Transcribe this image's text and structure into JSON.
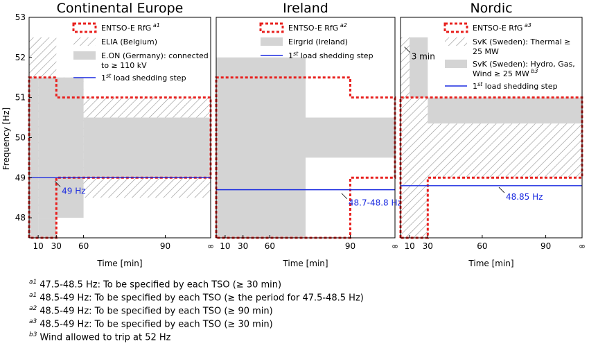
{
  "chart_data": [
    {
      "type": "area",
      "title": "Continental Europe",
      "xlabel": "Time [min]",
      "ylabel": "Frequency [Hz]",
      "xticks": [
        "10",
        "30",
        "60",
        "90",
        "∞"
      ],
      "yticks": [
        "53",
        "52",
        "51",
        "50",
        "49",
        "48"
      ],
      "ylim": [
        47.5,
        53
      ],
      "regions": [
        {
          "name": "ELIA (Belgium)",
          "style": "hatch",
          "blocks": [
            {
              "t0": 0,
              "t1": 10,
              "f0": 48.0,
              "f1": 52.5
            },
            {
              "t0": 10,
              "t1": 15,
              "f0": 48.5,
              "f1": 52.5
            },
            {
              "t0": 15,
              "t1": 30,
              "f0": 48.5,
              "f1": 51.5
            },
            {
              "t0": 30,
              "t1": 100,
              "f0": 48.5,
              "f1": 51.0
            }
          ]
        },
        {
          "name": "E.ON (Germany): connected to ≥ 110 kV",
          "style": "grey",
          "blocks": [
            {
              "t0": 0,
              "t1": 5,
              "f0": 47.5,
              "f1": 51.5
            },
            {
              "t0": 5,
              "t1": 15,
              "f0": 47.5,
              "f1": 48.0
            },
            {
              "t0": 5,
              "t1": 30,
              "f0": 48.0,
              "f1": 51.5
            },
            {
              "t0": 30,
              "t1": 100,
              "f0": 49.0,
              "f1": 50.5
            }
          ]
        }
      ],
      "rfg_outline": [
        [
          0,
          47.5
        ],
        [
          0,
          51.5
        ],
        [
          15,
          51.5
        ],
        [
          15,
          51.0
        ],
        [
          100,
          51.0
        ],
        [
          100,
          49.0
        ],
        [
          15,
          49.0
        ],
        [
          15,
          47.5
        ]
      ],
      "shedding_hz": 49.0,
      "annotations": [
        {
          "text": "49 Hz",
          "t": 18,
          "f": 48.6
        }
      ],
      "legend": [
        {
          "kind": "rfg",
          "label": "ENTSO-E RfG",
          "sup": "a1"
        },
        {
          "kind": "hatch",
          "label": "ELIA (Belgium)"
        },
        {
          "kind": "grey",
          "label": "E.ON (Germany): connected",
          "label2": "to ≥ 110 kV"
        },
        {
          "kind": "line",
          "label": "load shedding step"
        }
      ]
    },
    {
      "type": "area",
      "title": "Ireland",
      "xlabel": "Time [min]",
      "xticks": [
        "10",
        "30",
        "60",
        "90",
        "∞"
      ],
      "ylim": [
        47.5,
        53
      ],
      "regions": [
        {
          "name": "Eirgrid (Ireland)",
          "style": "grey",
          "blocks": [
            {
              "t0": 0,
              "t1": 50,
              "f0": 47.5,
              "f1": 52.0
            },
            {
              "t0": 50,
              "t1": 100,
              "f0": 49.5,
              "f1": 50.5
            }
          ]
        }
      ],
      "rfg_outline": [
        [
          0,
          47.5
        ],
        [
          0,
          51.5
        ],
        [
          75,
          51.5
        ],
        [
          75,
          51.0
        ],
        [
          100,
          51.0
        ],
        [
          100,
          49.0
        ],
        [
          75,
          49.0
        ],
        [
          75,
          47.5
        ]
      ],
      "shedding_hz": 48.7,
      "annotations": [
        {
          "text": "48.7-48.8 Hz",
          "t": 74,
          "f": 48.3
        }
      ],
      "legend": [
        {
          "kind": "rfg",
          "label": "ENTSO-E RfG",
          "sup": "a2"
        },
        {
          "kind": "grey",
          "label": "Eirgrid (Ireland)"
        },
        {
          "kind": "line",
          "label": "load shedding step"
        }
      ]
    },
    {
      "type": "area",
      "title": "Nordic",
      "xlabel": "Time [min]",
      "xticks": [
        "10",
        "30",
        "60",
        "90",
        "∞"
      ],
      "ylim": [
        47.5,
        53
      ],
      "regions": [
        {
          "name": "SvK (Sweden): Hydro, Gas, Wind ≥ 25 MW",
          "style": "grey",
          "blocks": [
            {
              "t0": 0,
              "t1": 15,
              "f0": 47.5,
              "f1": 52.5
            },
            {
              "t0": 15,
              "t1": 100,
              "f0": 50.35,
              "f1": 51.0
            }
          ]
        },
        {
          "name": "SvK (Sweden): Thermal ≥ 25 MW",
          "style": "hatch",
          "blocks": [
            {
              "t0": 0,
              "t1": 5,
              "f0": 47.5,
              "f1": 52.5
            },
            {
              "t0": 5,
              "t1": 15,
              "f0": 47.5,
              "f1": 51.0
            },
            {
              "t0": 15,
              "t1": 100,
              "f0": 49.0,
              "f1": 50.35
            }
          ]
        }
      ],
      "rfg_outline": [
        [
          0,
          47.5
        ],
        [
          0,
          51.0
        ],
        [
          100,
          51.0
        ],
        [
          100,
          49.0
        ],
        [
          15,
          49.0
        ],
        [
          15,
          47.5
        ]
      ],
      "shedding_hz": 48.8,
      "annotations": [
        {
          "text": "48.85 Hz",
          "t": 58,
          "f": 48.45
        },
        {
          "text": "3 min",
          "t": 6,
          "f": 51.95
        }
      ],
      "legend": [
        {
          "kind": "rfg",
          "label": "ENTSO-E RfG",
          "sup": "a3"
        },
        {
          "kind": "hatch",
          "label": "SvK (Sweden):  Thermal  ≥",
          "label2": "25 MW"
        },
        {
          "kind": "grey",
          "label": "SvK (Sweden):  Hydro,  Gas,",
          "label2": "Wind ≥ 25 MW",
          "sup2": "b3"
        },
        {
          "kind": "line",
          "label": "load shedding step"
        }
      ]
    }
  ],
  "footnotes": [
    {
      "sup": "a1",
      "text": "47.5-48.5 Hz: To be specified by each TSO (≥ 30 min)"
    },
    {
      "sup": "a1",
      "text": "48.5-49 Hz: To be specified by each TSO (≥ the period for 47.5-48.5 Hz)"
    },
    {
      "sup": "a2",
      "text": "48.5-49 Hz: To be specified by each TSO (≥ 90 min)"
    },
    {
      "sup": "a3",
      "text": "48.5-49 Hz: To be specified by each TSO (≥ 30 min)"
    },
    {
      "sup": "b3",
      "text": "Wind allowed to trip at 52 Hz"
    }
  ],
  "colors": {
    "rfg": "#e8201e",
    "line": "#1a2ae0",
    "grey": "#d4d4d4",
    "hatch": "#999999",
    "anno": "#1a2ae0"
  },
  "shedding_label": {
    "sup": "st",
    "prefix": "1"
  }
}
